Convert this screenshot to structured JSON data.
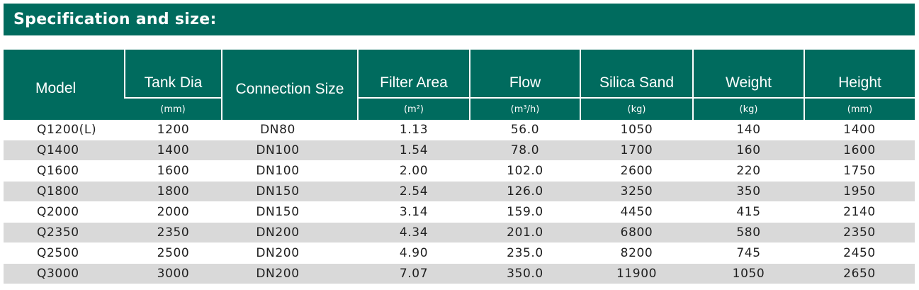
{
  "title": "Specification and size:",
  "columns": [
    {
      "label": "Model",
      "unit": ""
    },
    {
      "label": "Tank Dia",
      "unit": "(mm)"
    },
    {
      "label": "Connection Size",
      "unit": ""
    },
    {
      "label": "Filter Area",
      "unit": "(m²)"
    },
    {
      "label": "Flow",
      "unit": "(m³/h)"
    },
    {
      "label": "Silica Sand",
      "unit": "(kg)"
    },
    {
      "label": "Weight",
      "unit": "(kg)"
    },
    {
      "label": "Height",
      "unit": "(mm)"
    }
  ],
  "rows": [
    [
      "Q1200(L)",
      "1200",
      "DN80",
      "1.13",
      "56.0",
      "1050",
      "140",
      "1400"
    ],
    [
      "Q1400",
      "1400",
      "DN100",
      "1.54",
      "78.0",
      "1700",
      "160",
      "1600"
    ],
    [
      "Q1600",
      "1600",
      "DN100",
      "2.00",
      "102.0",
      "2600",
      "220",
      "1750"
    ],
    [
      "Q1800",
      "1800",
      "DN150",
      "2.54",
      "126.0",
      "3250",
      "350",
      "1950"
    ],
    [
      "Q2000",
      "2000",
      "DN150",
      "3.14",
      "159.0",
      "4450",
      "415",
      "2140"
    ],
    [
      "Q2350",
      "2350",
      "DN200",
      "4.34",
      "201.0",
      "6800",
      "580",
      "2350"
    ],
    [
      "Q2500",
      "2500",
      "DN200",
      "4.90",
      "235.0",
      "8200",
      "745",
      "2450"
    ],
    [
      "Q3000",
      "3000",
      "DN200",
      "7.07",
      "350.0",
      "11900",
      "1050",
      "2650"
    ]
  ],
  "colors": {
    "header_bg": "#006b5e",
    "header_text": "#ffffff",
    "row_alt_bg": "#d9d9d9"
  }
}
